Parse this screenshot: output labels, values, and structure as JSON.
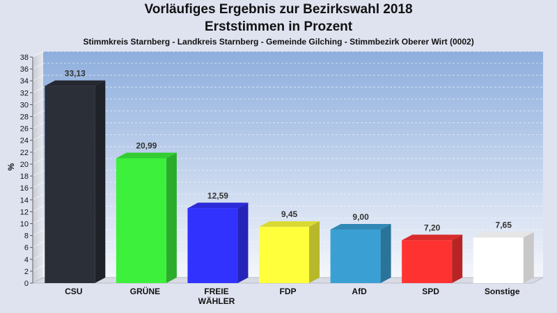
{
  "chart_data": {
    "type": "bar",
    "title": "Vorläufiges Ergebnis zur Bezirkswahl 2018",
    "title2": "Erststimmen in Prozent",
    "subtitle": "Stimmkreis Starnberg - Landkreis Starnberg - Gemeinde Gilching - Stimmbezirk Oberer Wirt (0002)",
    "ylabel": "%",
    "xlabel": "",
    "ylim": [
      0,
      38
    ],
    "yticks": [
      0,
      2,
      4,
      6,
      8,
      10,
      12,
      14,
      16,
      18,
      20,
      22,
      24,
      26,
      28,
      30,
      32,
      34,
      36,
      38
    ],
    "grid": true,
    "categories": [
      "CSU",
      "GRÜNE",
      "FREIE WÄHLER",
      "FDP",
      "AfD",
      "SPD",
      "Sonstige"
    ],
    "category_lines": [
      [
        "CSU"
      ],
      [
        "GRÜNE"
      ],
      [
        "FREIE",
        "WÄHLER"
      ],
      [
        "FDP"
      ],
      [
        "AfD"
      ],
      [
        "SPD"
      ],
      [
        "Sonstige"
      ]
    ],
    "values": [
      33.13,
      20.99,
      12.59,
      9.45,
      9.0,
      7.2,
      7.65
    ],
    "value_labels": [
      "33,13",
      "20,99",
      "12,59",
      "9,45",
      "9,00",
      "7,20",
      "7,65"
    ],
    "colors": [
      "#2b2f38",
      "#3cf03c",
      "#3232ff",
      "#ffff3c",
      "#3aa0d4",
      "#ff3232",
      "#ffffff"
    ]
  }
}
